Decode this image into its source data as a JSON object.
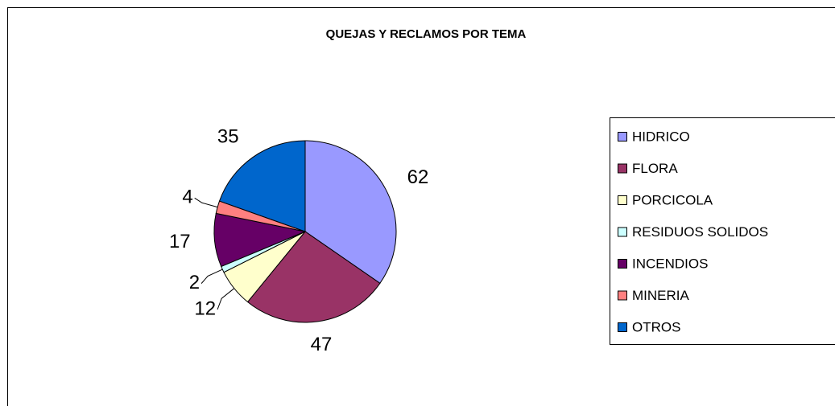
{
  "chart_data": {
    "type": "pie",
    "title": "QUEJAS Y RECLAMOS POR TEMA",
    "categories": [
      "HIDRICO",
      "FLORA",
      "PORCICOLA",
      "RESIDUOS SOLIDOS",
      "INCENDIOS",
      "MINERIA",
      "OTROS"
    ],
    "values": [
      62,
      47,
      12,
      2,
      17,
      4,
      35
    ],
    "colors": [
      "#9999ff",
      "#993366",
      "#ffffcc",
      "#ccffff",
      "#660066",
      "#ff8080",
      "#0066cc"
    ],
    "legend": "right"
  }
}
